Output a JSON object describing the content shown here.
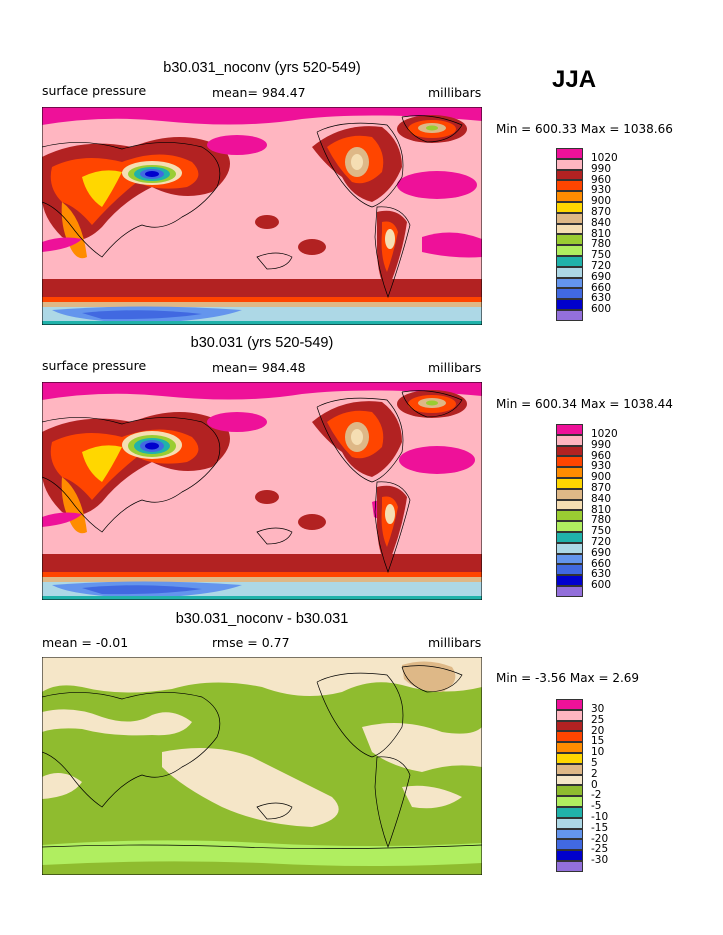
{
  "season": "JJA",
  "panels": [
    {
      "title": "b30.031_noconv (yrs 520-549)",
      "left_label": "surface pressure",
      "center_label": "mean= 984.47",
      "right_label": "millibars",
      "minmax": "Min = 600.33 Max = 1038.66",
      "legend": [
        "1020",
        "990",
        "960",
        "930",
        "900",
        "870",
        "840",
        "810",
        "780",
        "750",
        "720",
        "690",
        "660",
        "630",
        "600"
      ]
    },
    {
      "title": "b30.031 (yrs 520-549)",
      "left_label": "surface pressure",
      "center_label": "mean= 984.48",
      "right_label": "millibars",
      "minmax": "Min = 600.34 Max = 1038.44",
      "legend": [
        "1020",
        "990",
        "960",
        "930",
        "900",
        "870",
        "840",
        "810",
        "780",
        "750",
        "720",
        "690",
        "660",
        "630",
        "600"
      ]
    },
    {
      "title": "b30.031_noconv - b30.031",
      "left_label": "mean =   -0.01",
      "center_label": "rmse =    0.77",
      "right_label": "millibars",
      "minmax": "Min =  -3.56 Max =    2.69",
      "legend": [
        "30",
        "25",
        "20",
        "15",
        "10",
        "5",
        "2",
        "0",
        "-2",
        "-5",
        "-10",
        "-15",
        "-20",
        "-25",
        "-30"
      ]
    }
  ],
  "colors": {
    "pressure_scale": [
      "#ee1199",
      "#ffb6c1",
      "#b22222",
      "#ff4500",
      "#ff8c00",
      "#ffd700",
      "#deb887",
      "#f5deb3",
      "#9acd32",
      "#b0ee60",
      "#20b2aa",
      "#add8e6",
      "#6495ed",
      "#4169e1",
      "#0000cd",
      "#9370db"
    ],
    "diff_scale": [
      "#ee1199",
      "#ffb6c1",
      "#b22222",
      "#ff4500",
      "#ff8c00",
      "#ffd700",
      "#deb887",
      "#f5e6c8",
      "#8fbc2f",
      "#b0ee60",
      "#20b2aa",
      "#add8e6",
      "#6495ed",
      "#4169e1",
      "#0000cd",
      "#9370db"
    ]
  }
}
